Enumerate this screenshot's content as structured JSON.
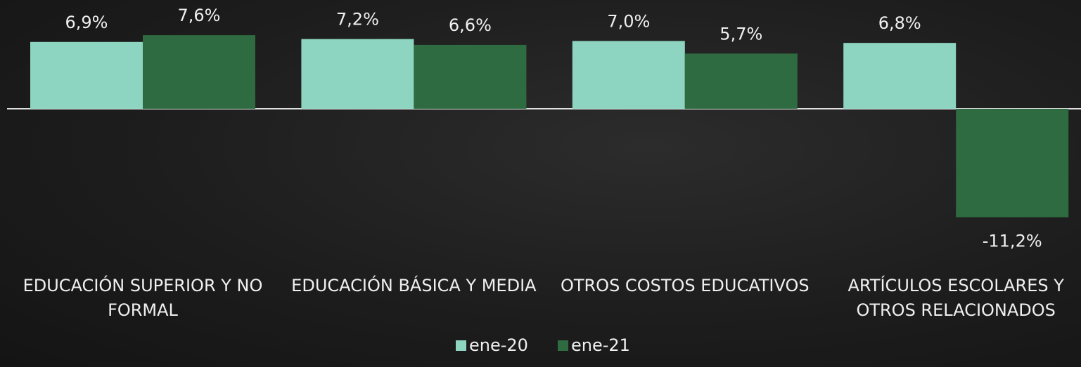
{
  "chart_data": {
    "type": "bar",
    "categories": [
      "EDUCACIÓN SUPERIOR Y NO FORMAL",
      "EDUCACIÓN BÁSICA Y MEDIA",
      "OTROS COSTOS EDUCATIVOS",
      "ARTÍCULOS ESCOLARES Y OTROS RELACIONADOS"
    ],
    "series": [
      {
        "name": "ene-20",
        "color": "#8dd5c0",
        "values": [
          6.9,
          7.2,
          7.0,
          6.8
        ],
        "value_labels": [
          "6,9%",
          "7,2%",
          "7,0%",
          "6,8%"
        ]
      },
      {
        "name": "ene-21",
        "color": "#2e6b40",
        "values": [
          7.6,
          6.6,
          5.7,
          -11.2
        ],
        "value_labels": [
          "7,6%",
          "6,6%",
          "5,7%",
          "-11,2%"
        ]
      }
    ],
    "legend": "bottom"
  }
}
